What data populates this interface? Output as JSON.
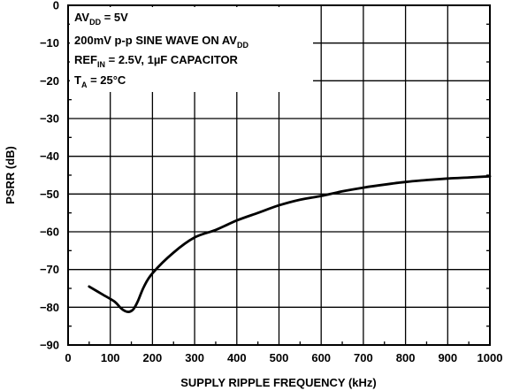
{
  "chart_data": {
    "type": "line",
    "title": "",
    "xlabel": "SUPPLY RIPPLE FREQUENCY (kHz)",
    "ylabel": "PSRR (dB)",
    "xlim": [
      0,
      1000
    ],
    "ylim": [
      -90,
      0
    ],
    "grid": true,
    "x_ticks": [
      "0",
      "100",
      "200",
      "300",
      "400",
      "500",
      "600",
      "700",
      "800",
      "900",
      "1000"
    ],
    "y_ticks": [
      "0",
      "−10",
      "−20",
      "−30",
      "−40",
      "−50",
      "−60",
      "−70",
      "−80",
      "−90"
    ],
    "annotations": {
      "line1": {
        "main": "AV",
        "sub": "DD",
        "rest": " = 5V"
      },
      "line2": {
        "main": "200mV p-p SINE WAVE ON AV",
        "sub": "DD",
        "rest": ""
      },
      "line3": {
        "main": "REF",
        "sub": "IN",
        "rest": " = 2.5V, 1µF CAPACITOR"
      },
      "line4": {
        "main": "T",
        "sub": "A",
        "rest": " = 25°C"
      }
    },
    "series": [
      {
        "x": [
          50,
          80,
          110,
          125,
          135,
          145,
          155,
          165,
          180,
          200,
          250,
          300,
          350,
          400,
          450,
          500,
          550,
          600,
          650,
          700,
          750,
          800,
          850,
          900,
          950,
          1000
        ],
        "y": [
          -74.5,
          -76.5,
          -78.5,
          -80.2,
          -81,
          -81.2,
          -80.5,
          -78.5,
          -74.5,
          -71,
          -65.5,
          -61.5,
          -59.5,
          -57,
          -55,
          -53,
          -51.5,
          -50.5,
          -49.3,
          -48.3,
          -47.5,
          -46.8,
          -46.3,
          -45.9,
          -45.6,
          -45.3
        ]
      }
    ]
  }
}
